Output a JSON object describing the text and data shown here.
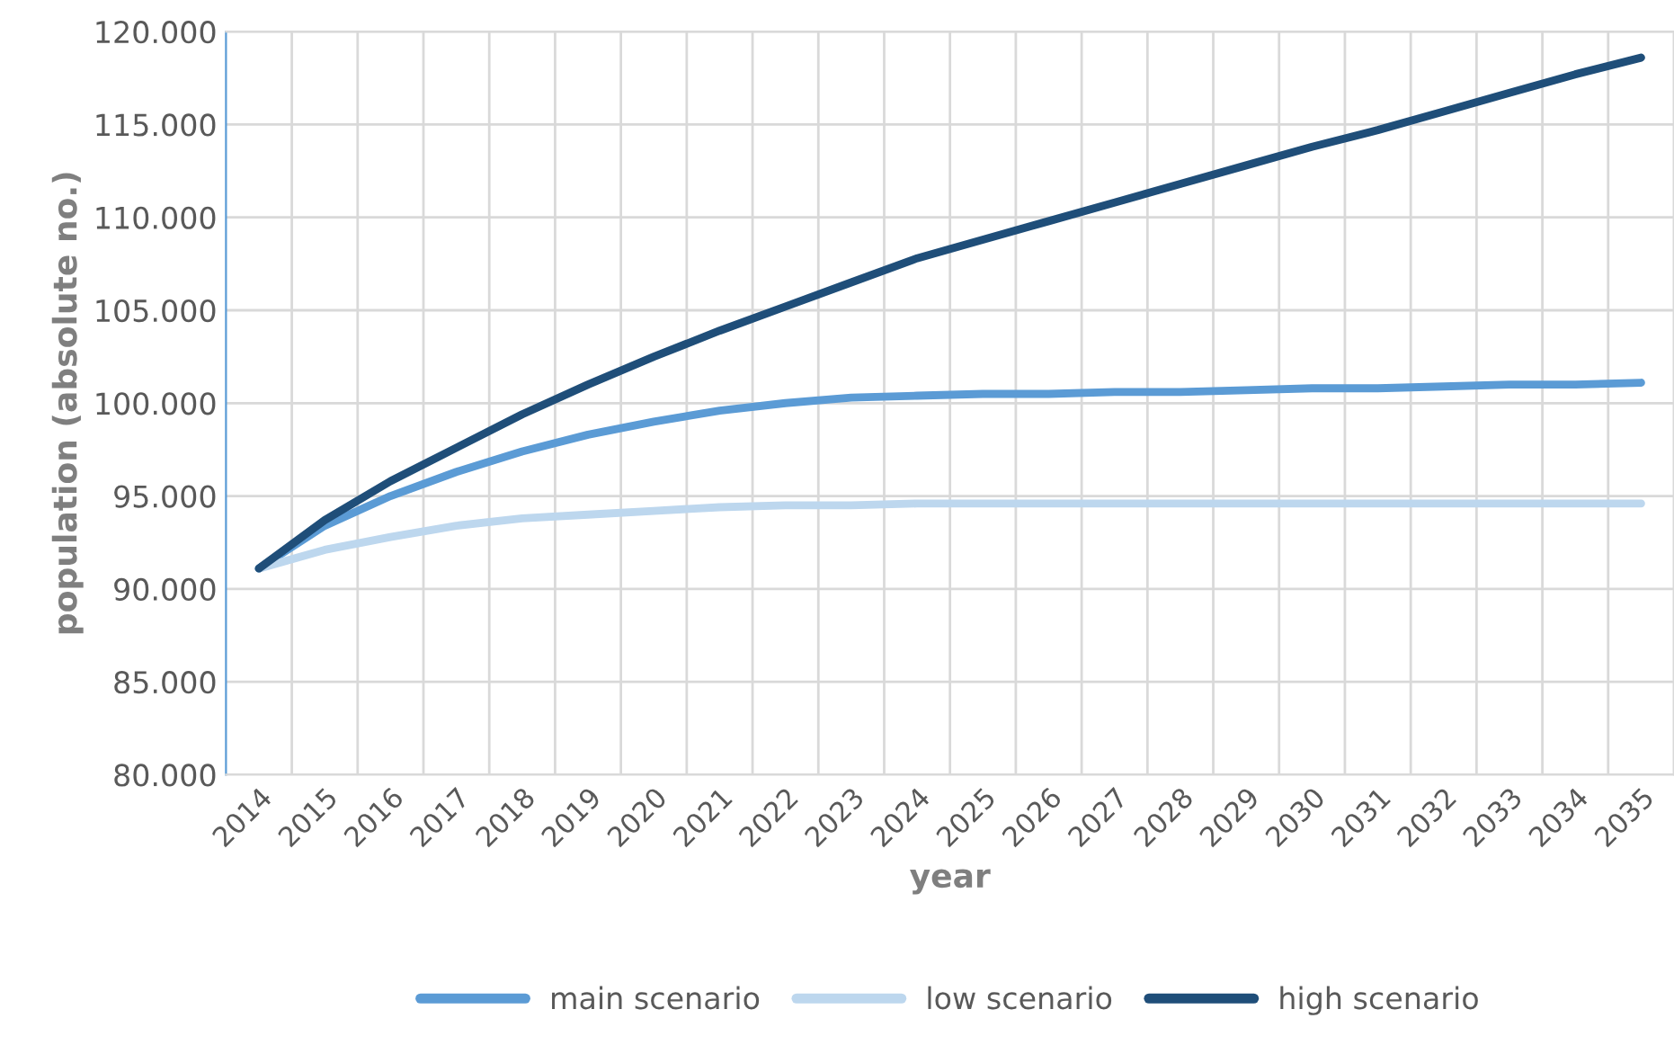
{
  "chart_data": {
    "type": "line",
    "xlabel": "year",
    "ylabel": "population (absolute no.)",
    "categories": [
      "2014",
      "2015",
      "2016",
      "2017",
      "2018",
      "2019",
      "2020",
      "2021",
      "2022",
      "2023",
      "2024",
      "2025",
      "2026",
      "2027",
      "2028",
      "2029",
      "2030",
      "2031",
      "2032",
      "2033",
      "2034",
      "2035"
    ],
    "series": [
      {
        "name": "main scenario",
        "color": "#5b9bd5",
        "values": [
          91100,
          93400,
          95000,
          96300,
          97400,
          98300,
          99000,
          99600,
          100000,
          100300,
          100400,
          100500,
          100500,
          100600,
          100600,
          100700,
          100800,
          100800,
          100900,
          101000,
          101000,
          101100
        ]
      },
      {
        "name": "low scenario",
        "color": "#bdd7ee",
        "values": [
          91100,
          92100,
          92800,
          93400,
          93800,
          94000,
          94200,
          94400,
          94500,
          94500,
          94600,
          94600,
          94600,
          94600,
          94600,
          94600,
          94600,
          94600,
          94600,
          94600,
          94600,
          94600
        ]
      },
      {
        "name": "high scenario",
        "color": "#1f4e79",
        "values": [
          91100,
          93700,
          95800,
          97600,
          99400,
          101000,
          102500,
          103900,
          105200,
          106500,
          107800,
          108800,
          109800,
          110800,
          111800,
          112800,
          113800,
          114700,
          115700,
          116700,
          117700,
          118600
        ]
      }
    ],
    "ylim": [
      80000,
      120000
    ],
    "yticks": [
      {
        "value": 80000,
        "label": "80.000"
      },
      {
        "value": 85000,
        "label": "85.000"
      },
      {
        "value": 90000,
        "label": "90.000"
      },
      {
        "value": 95000,
        "label": "95.000"
      },
      {
        "value": 100000,
        "label": "100.000"
      },
      {
        "value": 105000,
        "label": "105.000"
      },
      {
        "value": 110000,
        "label": "110.000"
      },
      {
        "value": 115000,
        "label": "115.000"
      },
      {
        "value": 120000,
        "label": "120.000"
      }
    ],
    "grid": true,
    "legend": "bottom",
    "marker": "none",
    "line_style": "solid"
  }
}
